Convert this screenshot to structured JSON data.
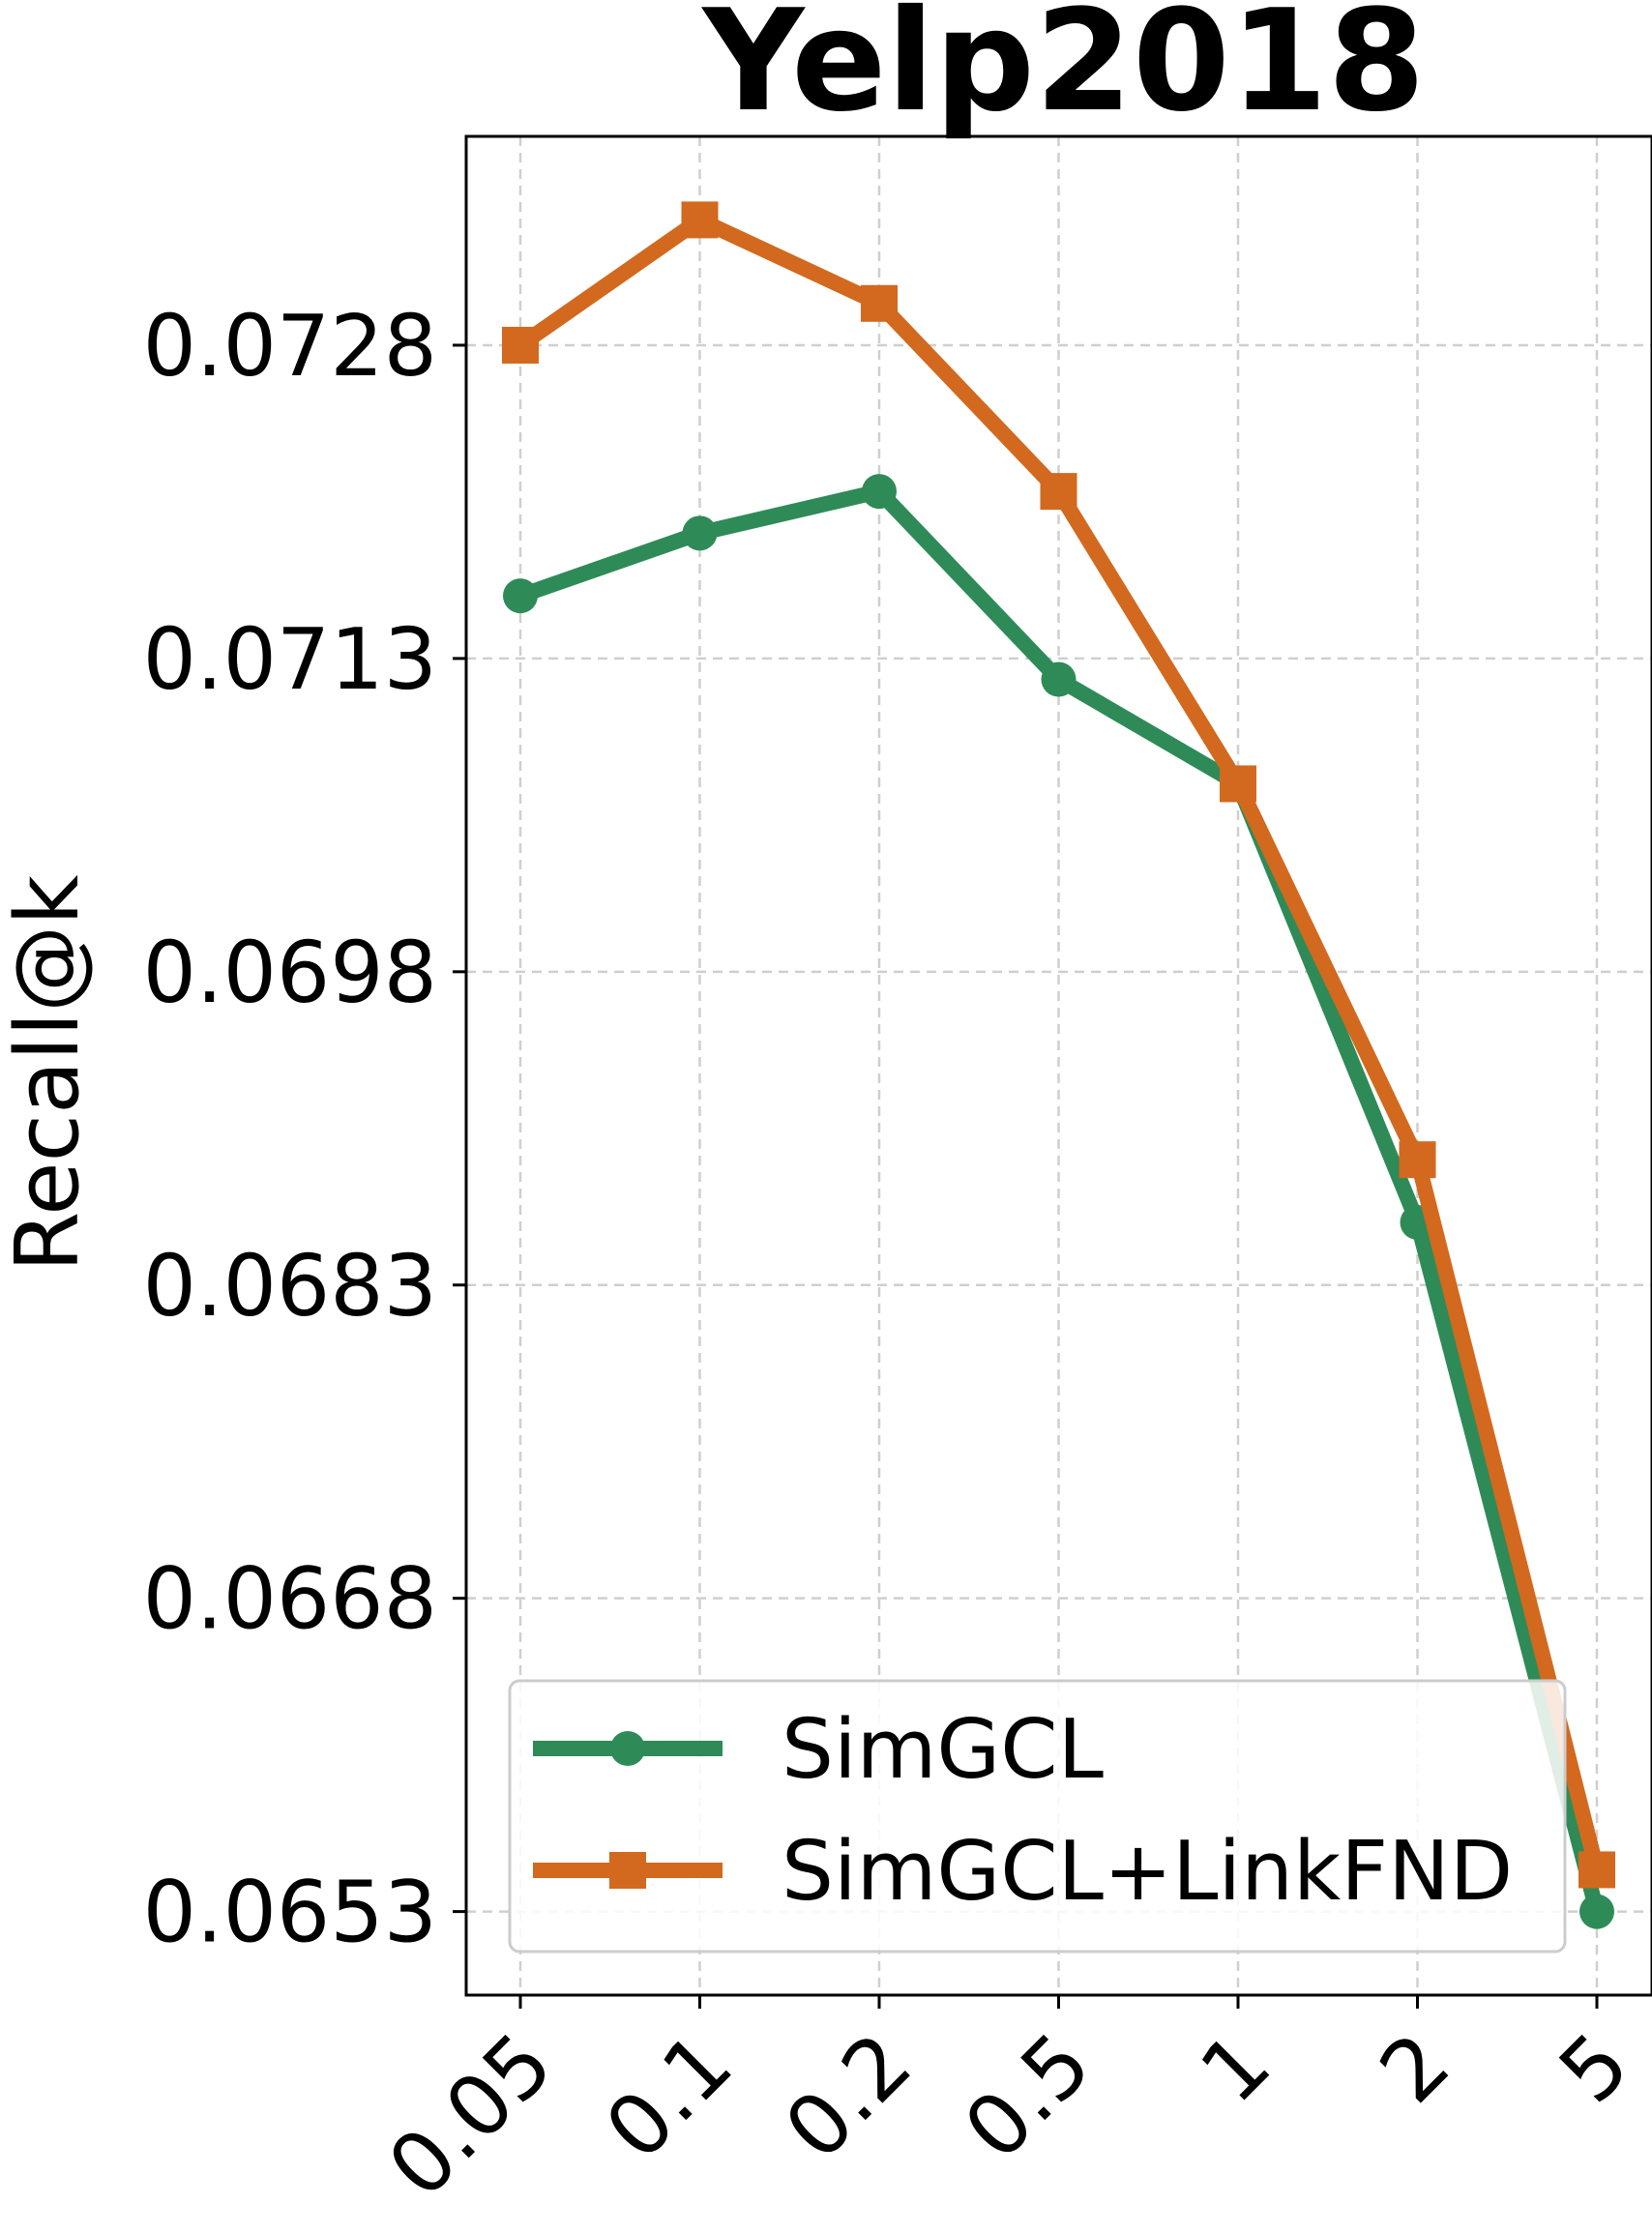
{
  "chart_data": {
    "type": "line",
    "title": "Yelp2018",
    "xlabel": "",
    "ylabel": "Recall@k",
    "categories": [
      "0.05",
      "0.1",
      "0.2",
      "0.5",
      "1",
      "2",
      "5"
    ],
    "yticks": [
      "0.0653",
      "0.0668",
      "0.0683",
      "0.0698",
      "0.0713",
      "0.0728"
    ],
    "ylim": [
      0.0649,
      0.0738
    ],
    "grid": true,
    "legend_position": "lower-right",
    "series": [
      {
        "name": "SimGCL",
        "color": "#2e8b57",
        "marker": "circle",
        "values": [
          0.0716,
          0.0719,
          0.0721,
          0.0712,
          0.0707,
          0.0686,
          0.0653
        ]
      },
      {
        "name": "SimGCL+LinkFND",
        "color": "#d2691e",
        "marker": "square",
        "values": [
          0.0728,
          0.0734,
          0.073,
          0.0721,
          0.0707,
          0.0689,
          0.0655
        ]
      }
    ]
  }
}
